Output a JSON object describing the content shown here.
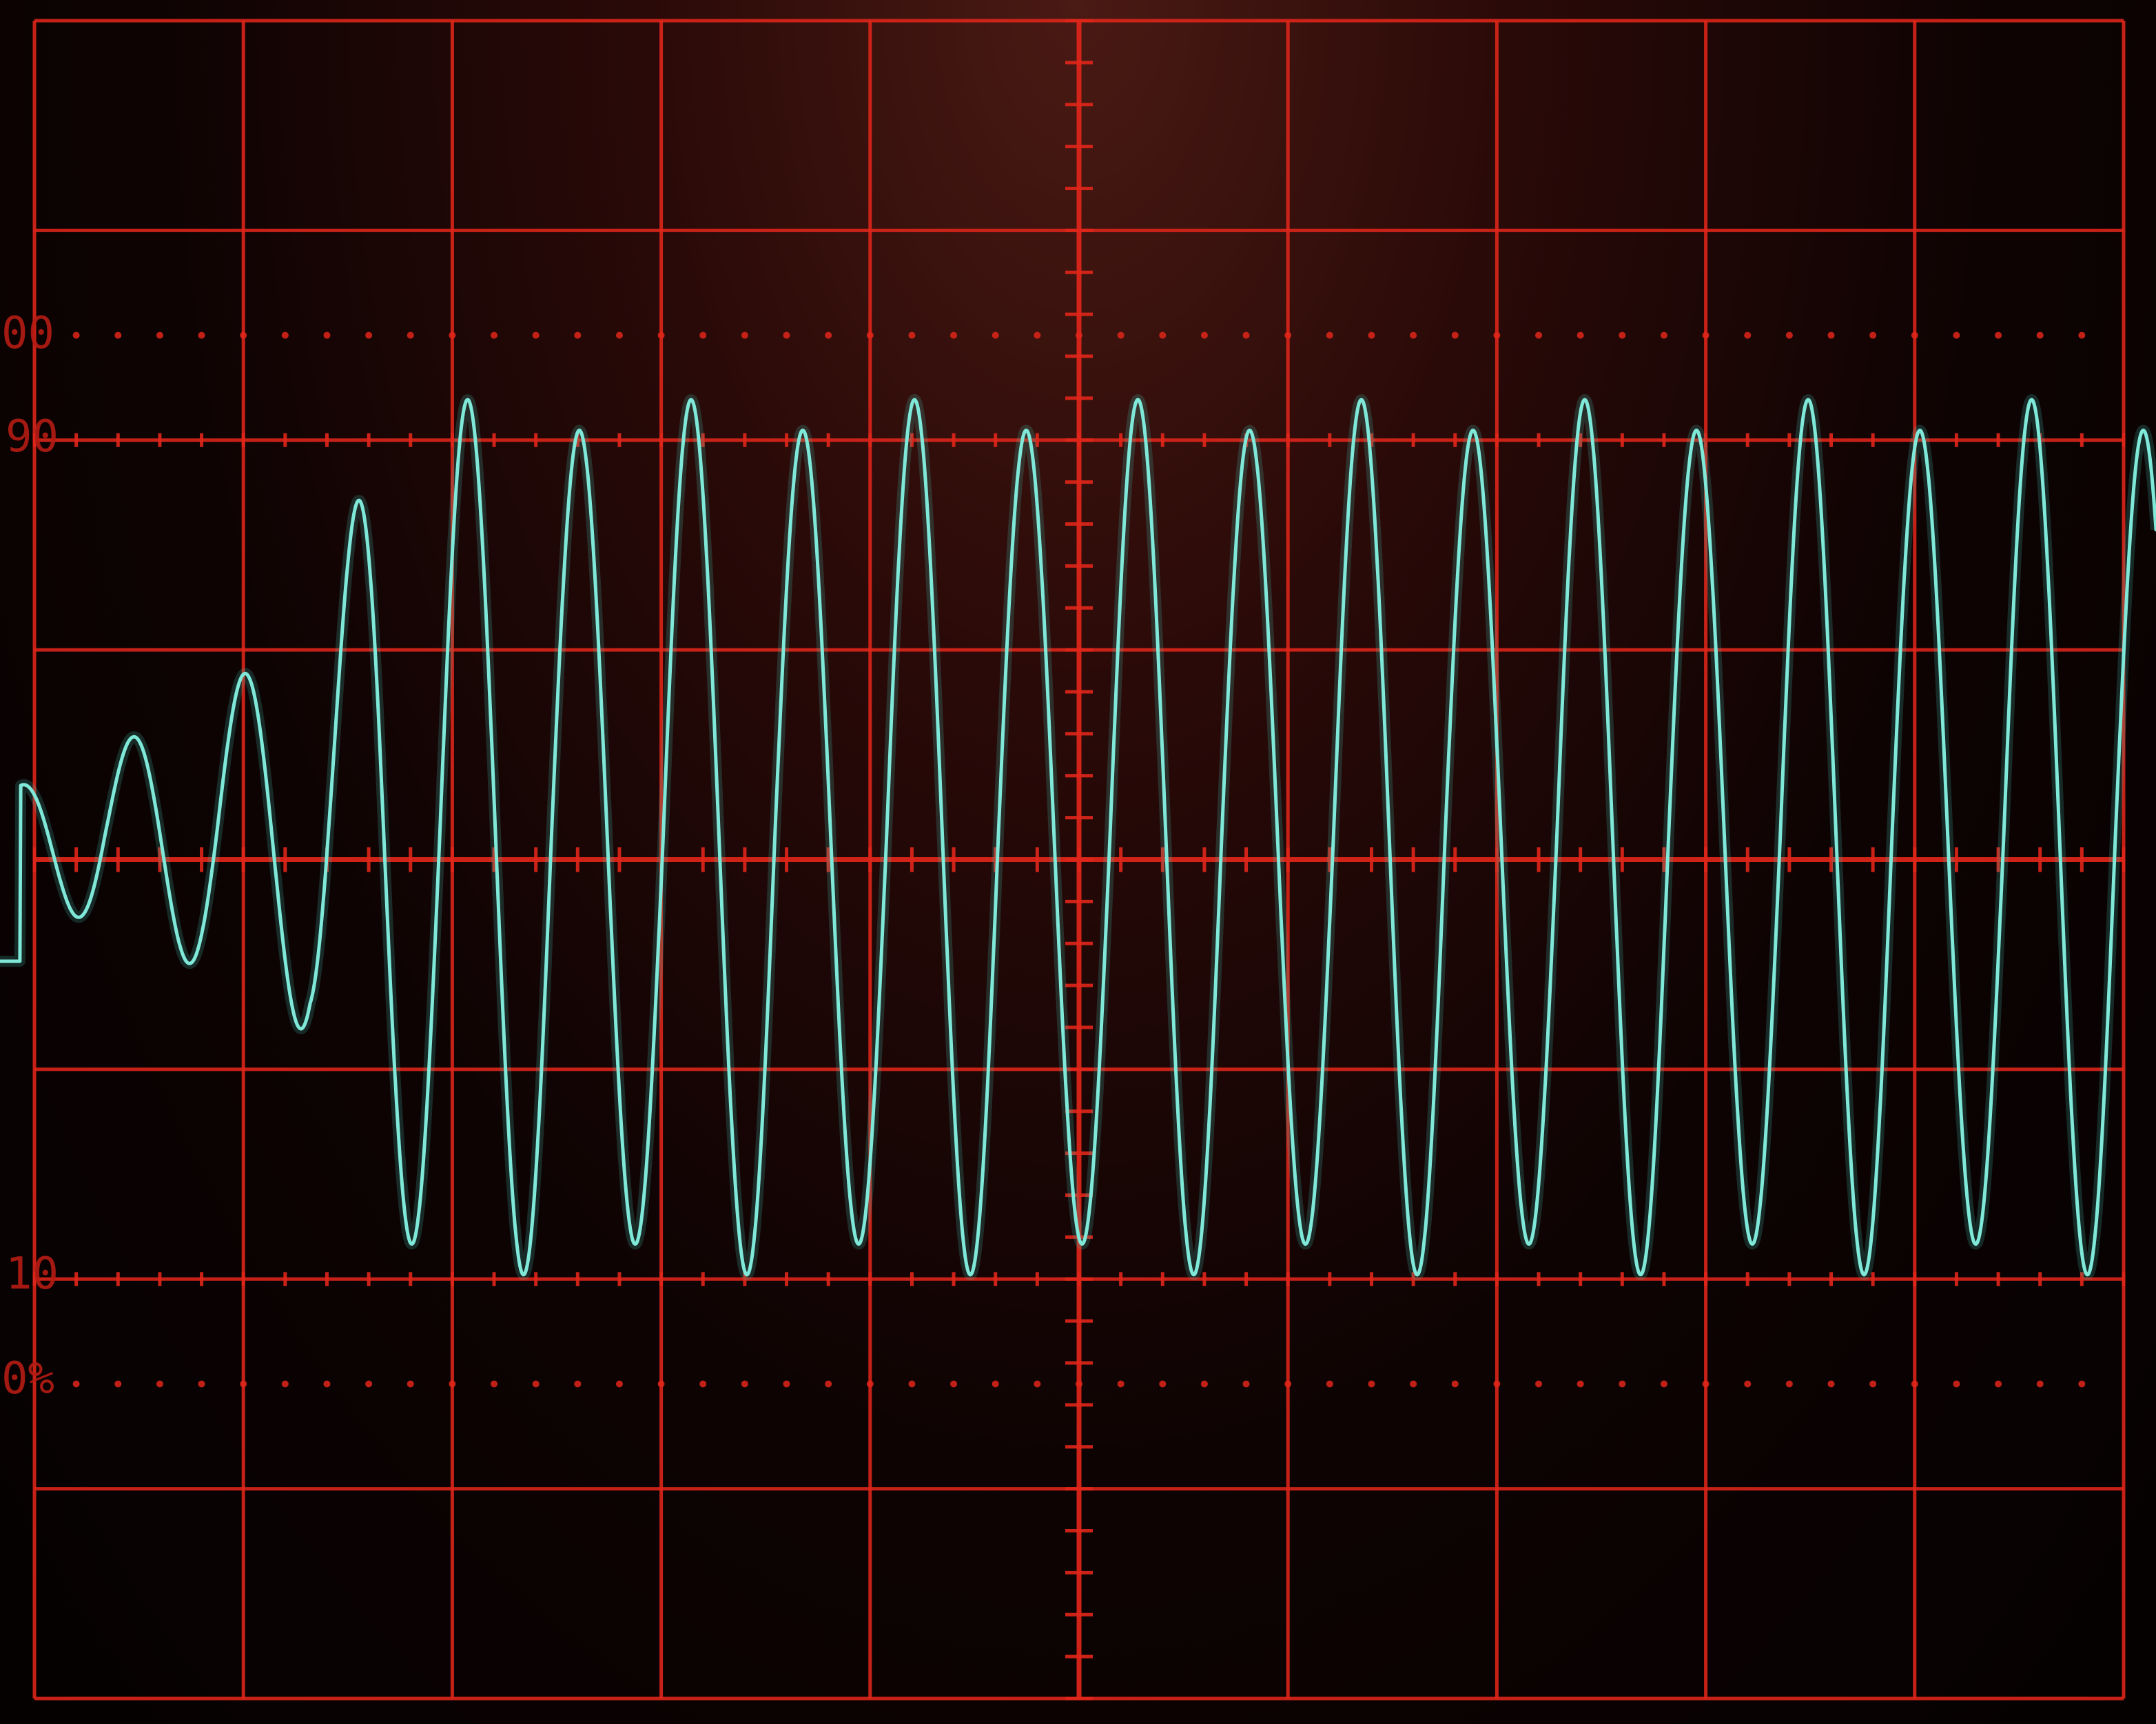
{
  "screen": {
    "graticule_color": "#e0261a",
    "trace_color": "#7fe8d8",
    "background_color": "#140505"
  },
  "graticule": {
    "labels": {
      "top_100": "00",
      "top_90": "90",
      "bottom_10": "10",
      "bottom_0": "0%"
    }
  }
}
